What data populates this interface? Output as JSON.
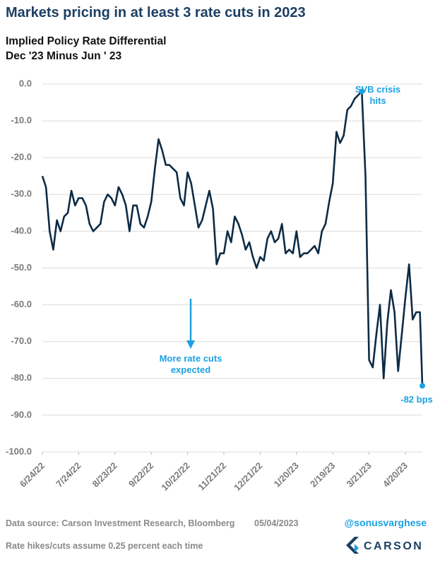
{
  "chart_data": {
    "type": "line",
    "title": "Markets pricing in at least 3 rate cuts in 2023",
    "subtitle": [
      "Implied Policy Rate Differential",
      "Dec '23 Minus Jun ' 23"
    ],
    "x": [
      "6/24/22",
      "6/27/22",
      "6/30/22",
      "7/3/22",
      "7/6/22",
      "7/9/22",
      "7/12/22",
      "7/15/22",
      "7/18/22",
      "7/21/22",
      "7/24/22",
      "7/27/22",
      "7/30/22",
      "8/2/22",
      "8/5/22",
      "8/8/22",
      "8/11/22",
      "8/14/22",
      "8/17/22",
      "8/20/22",
      "8/23/22",
      "8/26/22",
      "8/29/22",
      "9/1/22",
      "9/4/22",
      "9/7/22",
      "9/10/22",
      "9/13/22",
      "9/16/22",
      "9/19/22",
      "9/22/22",
      "9/25/22",
      "9/28/22",
      "10/1/22",
      "10/4/22",
      "10/7/22",
      "10/10/22",
      "10/13/22",
      "10/16/22",
      "10/19/22",
      "10/22/22",
      "10/25/22",
      "10/28/22",
      "10/31/22",
      "11/3/22",
      "11/6/22",
      "11/9/22",
      "11/12/22",
      "11/15/22",
      "11/18/22",
      "11/21/22",
      "11/24/22",
      "11/27/22",
      "11/30/22",
      "12/3/22",
      "12/6/22",
      "12/9/22",
      "12/12/22",
      "12/15/22",
      "12/18/22",
      "12/21/22",
      "12/24/22",
      "12/27/22",
      "12/30/22",
      "1/2/23",
      "1/5/23",
      "1/8/23",
      "1/11/23",
      "1/14/23",
      "1/17/23",
      "1/20/23",
      "1/23/23",
      "1/26/23",
      "1/29/23",
      "2/1/23",
      "2/4/23",
      "2/7/23",
      "2/10/23",
      "2/13/23",
      "2/16/23",
      "2/19/23",
      "2/22/23",
      "2/25/23",
      "2/28/23",
      "3/3/23",
      "3/6/23",
      "3/9/23",
      "3/12/23",
      "3/15/23",
      "3/18/23",
      "3/21/23",
      "3/24/23",
      "3/27/23",
      "3/30/23",
      "4/2/23",
      "4/5/23",
      "4/8/23",
      "4/11/23",
      "4/14/23",
      "4/17/23",
      "4/20/23",
      "4/23/23",
      "4/26/23",
      "4/29/23",
      "5/2/23",
      "5/4/23"
    ],
    "series": [
      {
        "name": "Implied Policy Rate Differential",
        "color": "#0d2b45",
        "values": [
          -25,
          -28,
          -40,
          -45,
          -37,
          -40,
          -36,
          -35,
          -29,
          -33,
          -31,
          -31,
          -33,
          -38,
          -40,
          -39,
          -38,
          -32,
          -30,
          -31,
          -33,
          -28,
          -30,
          -33,
          -40,
          -33,
          -33,
          -38,
          -39,
          -36,
          -32,
          -23,
          -15,
          -18,
          -22,
          -22,
          -23,
          -24,
          -31,
          -33,
          -24,
          -27,
          -33,
          -39,
          -37,
          -33,
          -29,
          -34,
          -49,
          -46,
          -46,
          -40,
          -43,
          -36,
          -38,
          -41,
          -45,
          -43,
          -47,
          -50,
          -47,
          -48,
          -42,
          -40,
          -43,
          -42,
          -38,
          -46,
          -45,
          -46,
          -40,
          -47,
          -46,
          -46,
          -45,
          -44,
          -46,
          -40,
          -38,
          -32,
          -27,
          -13,
          -16,
          -14,
          -7,
          -6,
          -4,
          -3,
          -2,
          -25,
          -75,
          -77,
          -68,
          -60,
          -80,
          -65,
          -56,
          -62,
          -78,
          -68,
          -58,
          -49,
          -64,
          -62,
          -62,
          -82
        ]
      }
    ],
    "xlim": [
      "6/24/22",
      "5/4/23"
    ],
    "xticks": [
      "6/24/22",
      "7/24/22",
      "8/23/22",
      "9/22/22",
      "10/22/22",
      "11/21/22",
      "12/21/22",
      "1/20/23",
      "2/19/23",
      "3/21/23",
      "4/20/23"
    ],
    "ylim": [
      0,
      -100
    ],
    "yticks": [
      {
        "value": 0,
        "label": "0.0"
      },
      {
        "value": -10,
        "label": "-10.0"
      },
      {
        "value": -20,
        "label": "-20.0"
      },
      {
        "value": -30,
        "label": "-30.0"
      },
      {
        "value": -40,
        "label": "-40.0"
      },
      {
        "value": -50,
        "label": "-50.0"
      },
      {
        "value": -60,
        "label": "-60.0"
      },
      {
        "value": -70,
        "label": "-70.0"
      },
      {
        "value": -80,
        "label": "-80.0"
      },
      {
        "value": -90,
        "label": "-90.0"
      },
      {
        "value": -100,
        "label": "-100.0"
      }
    ],
    "grid": true,
    "annotations": [
      {
        "text": [
          "SVB crisis",
          "hits"
        ],
        "color": "#1ba1e2"
      },
      {
        "text": [
          "More rate cuts",
          "expected"
        ],
        "color": "#1ba1e2"
      },
      {
        "text": [
          "-82 bps"
        ],
        "color": "#1ba1e2"
      }
    ],
    "source": "Data source: Carson Investment Research, Bloomberg",
    "date": "05/04/2023",
    "handle": "@sonusvarghese",
    "brand": "CARSON",
    "note": "Rate hikes/cuts assume 0.25 percent each time"
  }
}
